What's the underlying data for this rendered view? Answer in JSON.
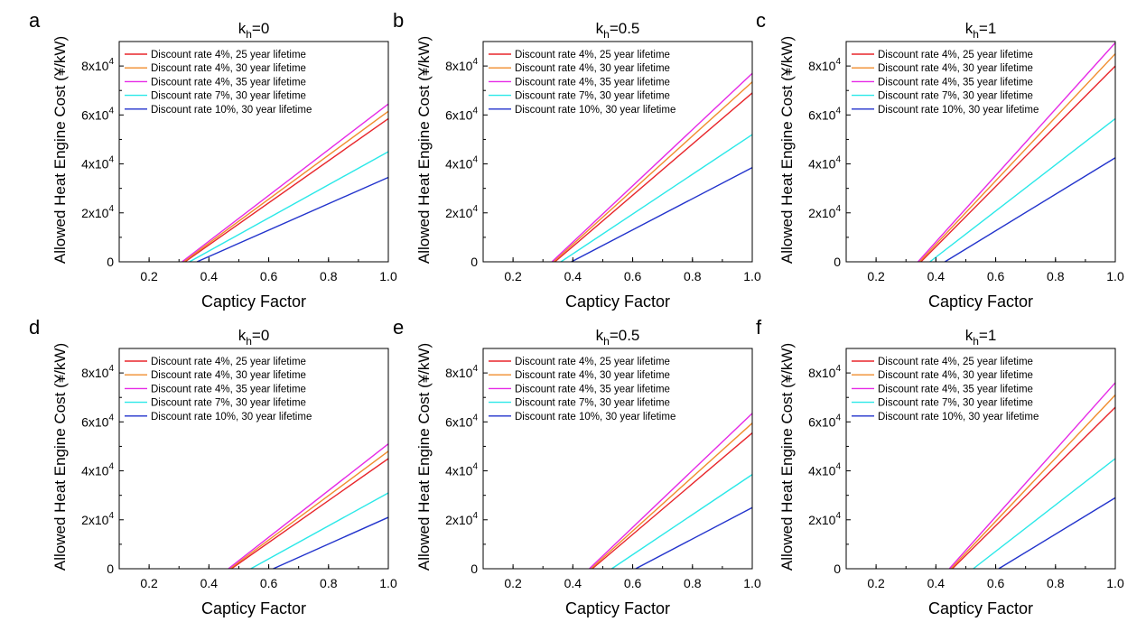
{
  "chart_data": [
    {
      "panel_letter": "a",
      "type": "line",
      "title": "k",
      "title_sub": "h",
      "title_tail": "=0",
      "xlabel": "Capticy Factor",
      "ylabel": "Allowed Heat Engine Cost (¥/kW)",
      "xlim": [
        0.1,
        1.0
      ],
      "ylim": [
        0,
        90000
      ],
      "xticks": [
        "0.2",
        "0.4",
        "0.6",
        "0.8",
        "1.0"
      ],
      "xtick_values": [
        0.2,
        0.4,
        0.6,
        0.8,
        1.0
      ],
      "yticks": [
        {
          "value": 0,
          "base": "0",
          "exp": ""
        },
        {
          "value": 20000,
          "base": "2x10",
          "exp": "4"
        },
        {
          "value": 40000,
          "base": "4x10",
          "exp": "4"
        },
        {
          "value": 60000,
          "base": "6x10",
          "exp": "4"
        },
        {
          "value": 80000,
          "base": "8x10",
          "exp": "4"
        }
      ],
      "legend_position": "top-left",
      "series": [
        {
          "name": "Discount rate 4%, 25 year lifetime",
          "color": "#e8262b",
          "x": [
            0.32,
            1.0
          ],
          "y": [
            0,
            58500
          ]
        },
        {
          "name": "Discount rate 4%, 30 year lifetime",
          "color": "#f08c2c",
          "x": [
            0.315,
            1.0
          ],
          "y": [
            0,
            61500
          ]
        },
        {
          "name": "Discount rate 4%, 35 year lifetime",
          "color": "#e62ae6",
          "x": [
            0.31,
            1.0
          ],
          "y": [
            0,
            64500
          ]
        },
        {
          "name": "Discount rate 7%, 30 year lifetime",
          "color": "#2ae8e8",
          "x": [
            0.335,
            1.0
          ],
          "y": [
            0,
            45000
          ]
        },
        {
          "name": "Discount rate 10%, 30 year lifetime",
          "color": "#2233cc",
          "x": [
            0.36,
            1.0
          ],
          "y": [
            0,
            34500
          ]
        }
      ]
    },
    {
      "panel_letter": "b",
      "type": "line",
      "title": "k",
      "title_sub": "h",
      "title_tail": "=0.5",
      "xlabel": "Capticy Factor",
      "ylabel": "Allowed Heat Engine Cost (¥/kW)",
      "xlim": [
        0.1,
        1.0
      ],
      "ylim": [
        0,
        90000
      ],
      "xticks": [
        "0.2",
        "0.4",
        "0.6",
        "0.8",
        "1.0"
      ],
      "xtick_values": [
        0.2,
        0.4,
        0.6,
        0.8,
        1.0
      ],
      "yticks": [
        {
          "value": 0,
          "base": "0",
          "exp": ""
        },
        {
          "value": 20000,
          "base": "2x10",
          "exp": "4"
        },
        {
          "value": 40000,
          "base": "4x10",
          "exp": "4"
        },
        {
          "value": 60000,
          "base": "6x10",
          "exp": "4"
        },
        {
          "value": 80000,
          "base": "8x10",
          "exp": "4"
        }
      ],
      "legend_position": "top-left",
      "series": [
        {
          "name": "Discount rate 4%, 25 year lifetime",
          "color": "#e8262b",
          "x": [
            0.34,
            1.0
          ],
          "y": [
            0,
            69000
          ]
        },
        {
          "name": "Discount rate 4%, 30 year lifetime",
          "color": "#f08c2c",
          "x": [
            0.335,
            1.0
          ],
          "y": [
            0,
            73500
          ]
        },
        {
          "name": "Discount rate 4%, 35 year lifetime",
          "color": "#e62ae6",
          "x": [
            0.33,
            1.0
          ],
          "y": [
            0,
            77000
          ]
        },
        {
          "name": "Discount rate 7%, 30 year lifetime",
          "color": "#2ae8e8",
          "x": [
            0.36,
            1.0
          ],
          "y": [
            0,
            52000
          ]
        },
        {
          "name": "Discount rate 10%, 30 year lifetime",
          "color": "#2233cc",
          "x": [
            0.395,
            1.0
          ],
          "y": [
            0,
            38500
          ]
        }
      ]
    },
    {
      "panel_letter": "c",
      "type": "line",
      "title": "k",
      "title_sub": "h",
      "title_tail": "=1",
      "xlabel": "Capticy Factor",
      "ylabel": "Allowed Heat Engine Cost (¥/kW)",
      "xlim": [
        0.1,
        1.0
      ],
      "ylim": [
        0,
        90000
      ],
      "xticks": [
        "0.2",
        "0.4",
        "0.6",
        "0.8",
        "1.0"
      ],
      "xtick_values": [
        0.2,
        0.4,
        0.6,
        0.8,
        1.0
      ],
      "yticks": [
        {
          "value": 0,
          "base": "0",
          "exp": ""
        },
        {
          "value": 20000,
          "base": "2x10",
          "exp": "4"
        },
        {
          "value": 40000,
          "base": "4x10",
          "exp": "4"
        },
        {
          "value": 60000,
          "base": "6x10",
          "exp": "4"
        },
        {
          "value": 80000,
          "base": "8x10",
          "exp": "4"
        }
      ],
      "legend_position": "top-left",
      "series": [
        {
          "name": "Discount rate 4%, 25 year lifetime",
          "color": "#e8262b",
          "x": [
            0.35,
            1.0
          ],
          "y": [
            0,
            80000
          ]
        },
        {
          "name": "Discount rate 4%, 30 year lifetime",
          "color": "#f08c2c",
          "x": [
            0.345,
            1.0
          ],
          "y": [
            0,
            85000
          ]
        },
        {
          "name": "Discount rate 4%, 35 year lifetime",
          "color": "#e62ae6",
          "x": [
            0.34,
            1.0
          ],
          "y": [
            0,
            89500
          ]
        },
        {
          "name": "Discount rate 7%, 30 year lifetime",
          "color": "#2ae8e8",
          "x": [
            0.38,
            1.0
          ],
          "y": [
            0,
            58500
          ]
        },
        {
          "name": "Discount rate 10%, 30 year lifetime",
          "color": "#2233cc",
          "x": [
            0.43,
            1.0
          ],
          "y": [
            0,
            42500
          ]
        }
      ]
    },
    {
      "panel_letter": "d",
      "type": "line",
      "title": "k",
      "title_sub": "h",
      "title_tail": "=0",
      "xlabel": "Capticy Factor",
      "ylabel": "Allowed Heat Engine Cost (¥/kW)",
      "xlim": [
        0.1,
        1.0
      ],
      "ylim": [
        0,
        90000
      ],
      "xticks": [
        "0.2",
        "0.4",
        "0.6",
        "0.8",
        "1.0"
      ],
      "xtick_values": [
        0.2,
        0.4,
        0.6,
        0.8,
        1.0
      ],
      "yticks": [
        {
          "value": 0,
          "base": "0",
          "exp": ""
        },
        {
          "value": 20000,
          "base": "2x10",
          "exp": "4"
        },
        {
          "value": 40000,
          "base": "4x10",
          "exp": "4"
        },
        {
          "value": 60000,
          "base": "6x10",
          "exp": "4"
        },
        {
          "value": 80000,
          "base": "8x10",
          "exp": "4"
        }
      ],
      "legend_position": "top-left",
      "series": [
        {
          "name": "Discount rate 4%, 25 year lifetime",
          "color": "#e8262b",
          "x": [
            0.475,
            1.0
          ],
          "y": [
            0,
            45000
          ]
        },
        {
          "name": "Discount rate 4%, 30 year lifetime",
          "color": "#f08c2c",
          "x": [
            0.47,
            1.0
          ],
          "y": [
            0,
            48000
          ]
        },
        {
          "name": "Discount rate 4%, 35 year lifetime",
          "color": "#e62ae6",
          "x": [
            0.465,
            1.0
          ],
          "y": [
            0,
            51000
          ]
        },
        {
          "name": "Discount rate 7%, 30 year lifetime",
          "color": "#2ae8e8",
          "x": [
            0.54,
            1.0
          ],
          "y": [
            0,
            31000
          ]
        },
        {
          "name": "Discount rate 10%, 30 year lifetime",
          "color": "#2233cc",
          "x": [
            0.615,
            1.0
          ],
          "y": [
            0,
            21000
          ]
        }
      ]
    },
    {
      "panel_letter": "e",
      "type": "line",
      "title": "k",
      "title_sub": "h",
      "title_tail": "=0.5",
      "xlabel": "Capticy Factor",
      "ylabel": "Allowed Heat Engine Cost (¥/kW)",
      "xlim": [
        0.1,
        1.0
      ],
      "ylim": [
        0,
        90000
      ],
      "xticks": [
        "0.2",
        "0.4",
        "0.6",
        "0.8",
        "1.0"
      ],
      "xtick_values": [
        0.2,
        0.4,
        0.6,
        0.8,
        1.0
      ],
      "yticks": [
        {
          "value": 0,
          "base": "0",
          "exp": ""
        },
        {
          "value": 20000,
          "base": "2x10",
          "exp": "4"
        },
        {
          "value": 40000,
          "base": "4x10",
          "exp": "4"
        },
        {
          "value": 60000,
          "base": "6x10",
          "exp": "4"
        },
        {
          "value": 80000,
          "base": "8x10",
          "exp": "4"
        }
      ],
      "legend_position": "top-left",
      "series": [
        {
          "name": "Discount rate 4%, 25 year lifetime",
          "color": "#e8262b",
          "x": [
            0.465,
            1.0
          ],
          "y": [
            0,
            55500
          ]
        },
        {
          "name": "Discount rate 4%, 30 year lifetime",
          "color": "#f08c2c",
          "x": [
            0.46,
            1.0
          ],
          "y": [
            0,
            59500
          ]
        },
        {
          "name": "Discount rate 4%, 35 year lifetime",
          "color": "#e62ae6",
          "x": [
            0.455,
            1.0
          ],
          "y": [
            0,
            63500
          ]
        },
        {
          "name": "Discount rate 7%, 30 year lifetime",
          "color": "#2ae8e8",
          "x": [
            0.53,
            1.0
          ],
          "y": [
            0,
            38500
          ]
        },
        {
          "name": "Discount rate 10%, 30 year lifetime",
          "color": "#2233cc",
          "x": [
            0.61,
            1.0
          ],
          "y": [
            0,
            25000
          ]
        }
      ]
    },
    {
      "panel_letter": "f",
      "type": "line",
      "title": "k",
      "title_sub": "h",
      "title_tail": "=1",
      "xlabel": "Capticy Factor",
      "ylabel": "Allowed Heat Engine Cost (¥/kW)",
      "xlim": [
        0.1,
        1.0
      ],
      "ylim": [
        0,
        90000
      ],
      "xticks": [
        "0.2",
        "0.4",
        "0.6",
        "0.8",
        "1.0"
      ],
      "xtick_values": [
        0.2,
        0.4,
        0.6,
        0.8,
        1.0
      ],
      "yticks": [
        {
          "value": 0,
          "base": "0",
          "exp": ""
        },
        {
          "value": 20000,
          "base": "2x10",
          "exp": "4"
        },
        {
          "value": 40000,
          "base": "4x10",
          "exp": "4"
        },
        {
          "value": 60000,
          "base": "6x10",
          "exp": "4"
        },
        {
          "value": 80000,
          "base": "8x10",
          "exp": "4"
        }
      ],
      "legend_position": "top-left",
      "series": [
        {
          "name": "Discount rate 4%, 25 year lifetime",
          "color": "#e8262b",
          "x": [
            0.455,
            1.0
          ],
          "y": [
            0,
            66000
          ]
        },
        {
          "name": "Discount rate 4%, 30 year lifetime",
          "color": "#f08c2c",
          "x": [
            0.45,
            1.0
          ],
          "y": [
            0,
            71000
          ]
        },
        {
          "name": "Discount rate 4%, 35 year lifetime",
          "color": "#e62ae6",
          "x": [
            0.445,
            1.0
          ],
          "y": [
            0,
            76000
          ]
        },
        {
          "name": "Discount rate 7%, 30 year lifetime",
          "color": "#2ae8e8",
          "x": [
            0.525,
            1.0
          ],
          "y": [
            0,
            45000
          ]
        },
        {
          "name": "Discount rate 10%, 30 year lifetime",
          "color": "#2233cc",
          "x": [
            0.61,
            1.0
          ],
          "y": [
            0,
            29000
          ]
        }
      ]
    }
  ]
}
